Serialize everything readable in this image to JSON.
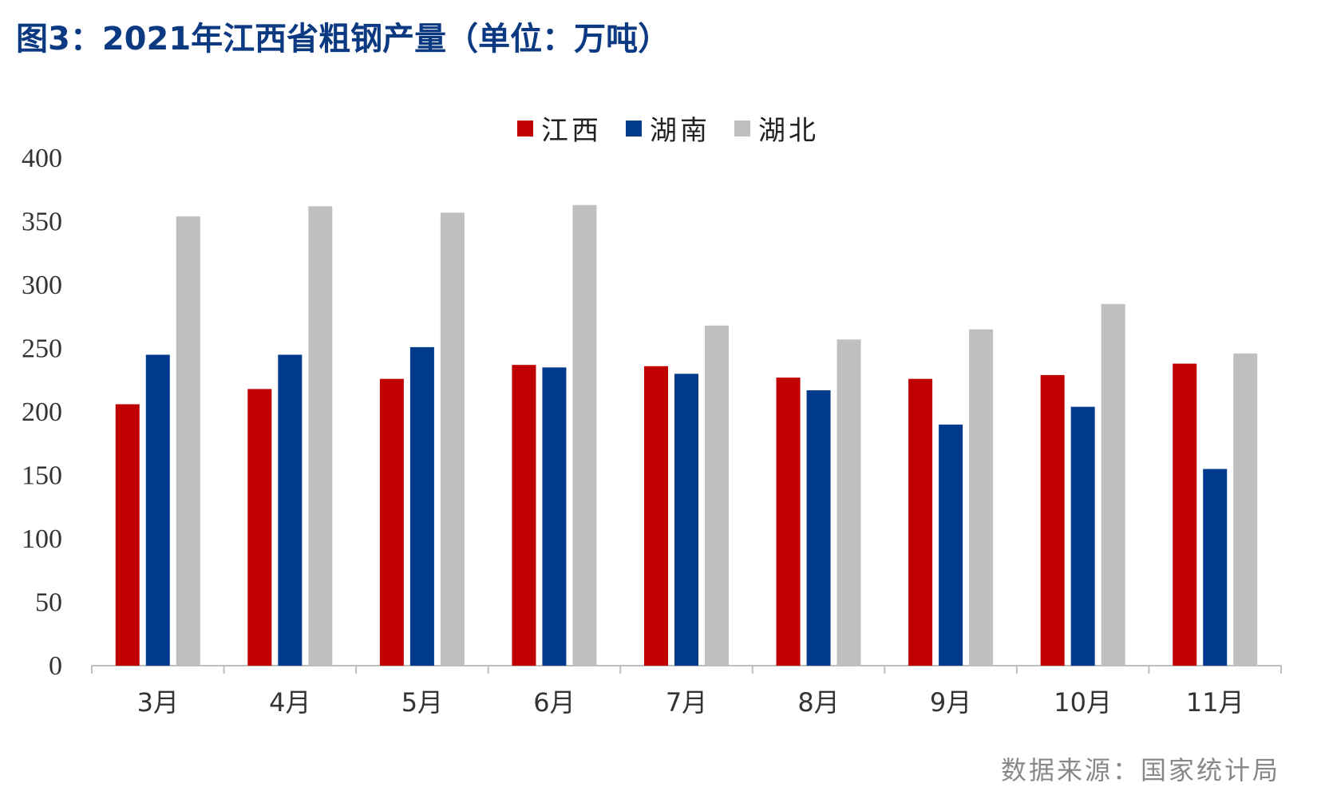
{
  "title": "图3：2021年江西省粗钢产量（单位：万吨）",
  "source": "数据来源：国家统计局",
  "colors": {
    "jiangxi": "#c00000",
    "hunan": "#003a8c",
    "hubei": "#bfbfbf"
  },
  "chart_data": {
    "type": "bar",
    "categories": [
      "3月",
      "4月",
      "5月",
      "6月",
      "7月",
      "8月",
      "9月",
      "10月",
      "11月"
    ],
    "series": [
      {
        "name": "江西",
        "color": "#c00000",
        "values": [
          206,
          218,
          226,
          237,
          236,
          227,
          226,
          229,
          238
        ]
      },
      {
        "name": "湖南",
        "color": "#003a8c",
        "values": [
          245,
          245,
          251,
          235,
          230,
          217,
          190,
          204,
          155
        ]
      },
      {
        "name": "湖北",
        "color": "#bfbfbf",
        "values": [
          354,
          362,
          357,
          363,
          268,
          257,
          265,
          285,
          246
        ]
      }
    ],
    "ylim": [
      0,
      400
    ],
    "yticks": [
      0,
      50,
      100,
      150,
      200,
      250,
      300,
      350,
      400
    ],
    "legend_position": "top-center",
    "grid": false
  }
}
